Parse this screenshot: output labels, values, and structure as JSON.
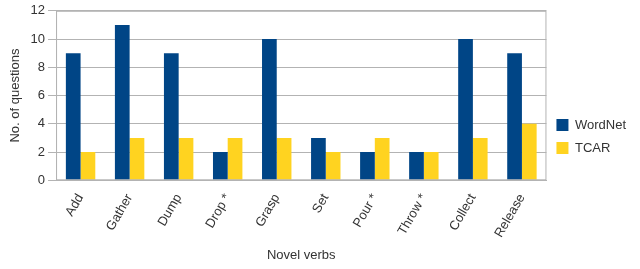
{
  "chart_data": {
    "type": "bar",
    "categories": [
      "Add",
      "Gather",
      "Dump",
      "Drop *",
      "Grasp",
      "Set",
      "Pour *",
      "Throw *",
      "Collect",
      "Release"
    ],
    "series": [
      {
        "name": "WordNet",
        "color": "#004586",
        "values": [
          9,
          11,
          9,
          2,
          10,
          3,
          2,
          2,
          10,
          9
        ]
      },
      {
        "name": "TCAR",
        "color": "#ffd320",
        "values": [
          2,
          3,
          3,
          3,
          3,
          2,
          3,
          2,
          3,
          4
        ]
      }
    ],
    "x_label": "Novel verbs",
    "y_label": "No. of questions",
    "ylim": [
      0,
      12
    ],
    "yticks": [
      0,
      2,
      4,
      6,
      8,
      10,
      12
    ],
    "grid": true,
    "legend": "right"
  }
}
